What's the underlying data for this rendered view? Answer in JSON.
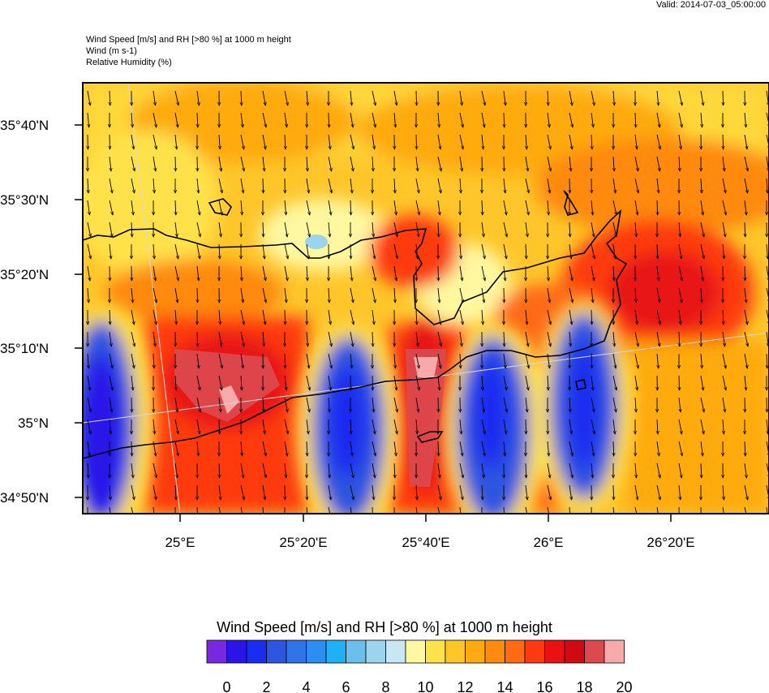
{
  "valid_time": "Valid: 2014-07-03_05:00:00",
  "headers": [
    "Wind Speed [m/s] and RH [>80 %] at 1000 m height",
    "Wind   (m s-1)",
    "Relative Humidity   (%)"
  ],
  "lat_labels": [
    "35°40'N",
    "35°30'N",
    "35°20'N",
    "35°10'N",
    "35°N",
    "34°50'N"
  ],
  "lon_labels": [
    "25°E",
    "25°20'E",
    "25°40'E",
    "26°E",
    "26°20'E"
  ],
  "colorbar": {
    "title": "Wind Speed [m/s] and RH [>80 %] at 1000 m height",
    "tick_labels": [
      "0",
      "2",
      "4",
      "6",
      "8",
      "10",
      "12",
      "14",
      "16",
      "18",
      "20"
    ],
    "colors": [
      "#7a28e0",
      "#2a14e8",
      "#1a2cf0",
      "#2e55e0",
      "#2f74ea",
      "#2b8ef0",
      "#20b0f5",
      "#6ac0ea",
      "#9cd4ee",
      "#c8e6f4",
      "#fff8a0",
      "#ffe24a",
      "#ffc62a",
      "#ffaa10",
      "#ff8a10",
      "#ff6a12",
      "#ff3a10",
      "#e81212",
      "#d00a10",
      "#dc4a50",
      "#f8aaaa"
    ]
  },
  "colors": {
    "coastline": "#000000",
    "wind_arrow": "#000000",
    "graticule": "#d8d8d8"
  }
}
